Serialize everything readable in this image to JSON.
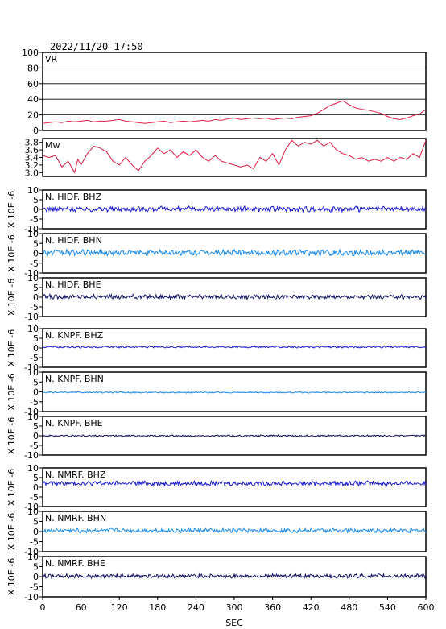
{
  "header": {
    "datetime": "2022/11/20  17:50"
  },
  "chart_data": {
    "type": "line",
    "x": {
      "label": "SEC",
      "range": [
        0,
        600
      ],
      "ticks": [
        0,
        60,
        120,
        180,
        240,
        300,
        360,
        420,
        480,
        540,
        600
      ]
    },
    "colors": {
      "vr": "#e0204a",
      "mw": "#d81a40",
      "bhz": "#1a1ad0",
      "bhn": "#1a8ae8",
      "bhe": "#101060"
    },
    "panels": [
      {
        "id": "vr",
        "label": "VR",
        "color": "#e0204a",
        "ylim": [
          0,
          100
        ],
        "yticks": [
          0,
          20,
          40,
          60,
          80,
          100
        ],
        "grid": true,
        "series": [
          [
            0,
            9
          ],
          [
            10,
            10
          ],
          [
            20,
            11
          ],
          [
            30,
            10
          ],
          [
            40,
            12
          ],
          [
            50,
            11
          ],
          [
            60,
            12
          ],
          [
            70,
            13
          ],
          [
            80,
            11
          ],
          [
            90,
            12
          ],
          [
            100,
            12
          ],
          [
            110,
            13
          ],
          [
            120,
            14
          ],
          [
            130,
            12
          ],
          [
            140,
            11
          ],
          [
            150,
            10
          ],
          [
            160,
            9
          ],
          [
            170,
            10
          ],
          [
            180,
            11
          ],
          [
            190,
            12
          ],
          [
            200,
            10
          ],
          [
            210,
            11
          ],
          [
            220,
            12
          ],
          [
            230,
            11
          ],
          [
            240,
            12
          ],
          [
            250,
            13
          ],
          [
            260,
            12
          ],
          [
            270,
            14
          ],
          [
            280,
            13
          ],
          [
            290,
            15
          ],
          [
            300,
            16
          ],
          [
            310,
            14
          ],
          [
            320,
            15
          ],
          [
            330,
            16
          ],
          [
            340,
            15
          ],
          [
            350,
            16
          ],
          [
            360,
            14
          ],
          [
            370,
            15
          ],
          [
            380,
            16
          ],
          [
            390,
            15
          ],
          [
            400,
            17
          ],
          [
            410,
            18
          ],
          [
            420,
            19
          ],
          [
            430,
            22
          ],
          [
            440,
            27
          ],
          [
            450,
            32
          ],
          [
            460,
            35
          ],
          [
            470,
            38
          ],
          [
            480,
            33
          ],
          [
            490,
            29
          ],
          [
            500,
            27
          ],
          [
            510,
            26
          ],
          [
            520,
            24
          ],
          [
            530,
            22
          ],
          [
            540,
            18
          ],
          [
            550,
            15
          ],
          [
            560,
            14
          ],
          [
            570,
            16
          ],
          [
            580,
            19
          ],
          [
            590,
            21
          ],
          [
            600,
            27
          ]
        ]
      },
      {
        "id": "mw",
        "label": "Mw",
        "color": "#d81a40",
        "ylim": [
          2.9,
          3.9
        ],
        "yticks": [
          3.0,
          3.2,
          3.4,
          3.6,
          3.8
        ],
        "grid": false,
        "series": [
          [
            0,
            3.45
          ],
          [
            10,
            3.4
          ],
          [
            20,
            3.45
          ],
          [
            30,
            3.15
          ],
          [
            40,
            3.3
          ],
          [
            50,
            3.0
          ],
          [
            55,
            3.35
          ],
          [
            60,
            3.2
          ],
          [
            70,
            3.5
          ],
          [
            80,
            3.7
          ],
          [
            90,
            3.65
          ],
          [
            100,
            3.55
          ],
          [
            110,
            3.3
          ],
          [
            120,
            3.2
          ],
          [
            130,
            3.4
          ],
          [
            140,
            3.2
          ],
          [
            150,
            3.05
          ],
          [
            160,
            3.3
          ],
          [
            170,
            3.45
          ],
          [
            180,
            3.65
          ],
          [
            190,
            3.5
          ],
          [
            200,
            3.6
          ],
          [
            210,
            3.4
          ],
          [
            220,
            3.55
          ],
          [
            230,
            3.45
          ],
          [
            240,
            3.6
          ],
          [
            250,
            3.4
          ],
          [
            260,
            3.3
          ],
          [
            270,
            3.45
          ],
          [
            280,
            3.3
          ],
          [
            290,
            3.25
          ],
          [
            300,
            3.2
          ],
          [
            310,
            3.15
          ],
          [
            320,
            3.2
          ],
          [
            330,
            3.1
          ],
          [
            340,
            3.4
          ],
          [
            350,
            3.3
          ],
          [
            360,
            3.5
          ],
          [
            370,
            3.2
          ],
          [
            380,
            3.6
          ],
          [
            390,
            3.85
          ],
          [
            400,
            3.7
          ],
          [
            410,
            3.8
          ],
          [
            420,
            3.75
          ],
          [
            430,
            3.85
          ],
          [
            440,
            3.7
          ],
          [
            450,
            3.8
          ],
          [
            460,
            3.6
          ],
          [
            470,
            3.5
          ],
          [
            480,
            3.45
          ],
          [
            490,
            3.35
          ],
          [
            500,
            3.4
          ],
          [
            510,
            3.3
          ],
          [
            520,
            3.35
          ],
          [
            530,
            3.3
          ],
          [
            540,
            3.4
          ],
          [
            550,
            3.3
          ],
          [
            560,
            3.4
          ],
          [
            570,
            3.35
          ],
          [
            580,
            3.5
          ],
          [
            590,
            3.4
          ],
          [
            600,
            3.85
          ]
        ]
      },
      {
        "id": "hidf-bhz",
        "label": "N. HIDF. BHZ",
        "color": "#1a1ad0",
        "ylim": [
          -10,
          10
        ],
        "yticks": [
          -10,
          -5,
          0,
          5,
          10
        ],
        "grid": false,
        "baseline": 0.2,
        "amplitude": 1.2
      },
      {
        "id": "hidf-bhn",
        "label": "N. HIDF. BHN",
        "color": "#1a8ae8",
        "ylim": [
          -10,
          10
        ],
        "yticks": [
          -10,
          -5,
          0,
          5,
          10
        ],
        "grid": false,
        "baseline": 0.3,
        "amplitude": 1.3
      },
      {
        "id": "hidf-bhe",
        "label": "N. HIDF. BHE",
        "color": "#101060",
        "ylim": [
          -10,
          10
        ],
        "yticks": [
          -10,
          -5,
          0,
          5,
          10
        ],
        "grid": false,
        "baseline": 0.2,
        "amplitude": 1.0
      },
      {
        "id": "knpf-bhz",
        "label": "N. KNPF. BHZ",
        "color": "#1a1ad0",
        "ylim": [
          -10,
          10
        ],
        "yticks": [
          -10,
          -5,
          0,
          5,
          10
        ],
        "grid": false,
        "baseline": 0.5,
        "amplitude": 0.4
      },
      {
        "id": "knpf-bhn",
        "label": "N. KNPF. BHN",
        "color": "#1a8ae8",
        "ylim": [
          -10,
          10
        ],
        "yticks": [
          -10,
          -5,
          0,
          5,
          10
        ],
        "grid": false,
        "baseline": -0.3,
        "amplitude": 0.3
      },
      {
        "id": "knpf-bhe",
        "label": "N. KNPF. BHE",
        "color": "#101060",
        "ylim": [
          -10,
          10
        ],
        "yticks": [
          -10,
          -5,
          0,
          5,
          10
        ],
        "grid": false,
        "baseline": 0.0,
        "amplitude": 0.35
      },
      {
        "id": "nmrf-bhz",
        "label": "N. NMRF. BHZ",
        "color": "#1a1ad0",
        "ylim": [
          -10,
          10
        ],
        "yticks": [
          -10,
          -5,
          0,
          5,
          10
        ],
        "grid": false,
        "baseline": 2.0,
        "amplitude": 1.0
      },
      {
        "id": "nmrf-bhn",
        "label": "N. NMRF. BHN",
        "color": "#1a8ae8",
        "ylim": [
          -10,
          10
        ],
        "yticks": [
          -10,
          -5,
          0,
          5,
          10
        ],
        "grid": false,
        "baseline": 0.5,
        "amplitude": 0.9
      },
      {
        "id": "nmrf-bhe",
        "label": "N. NMRF. BHE",
        "color": "#101060",
        "ylim": [
          -10,
          10
        ],
        "yticks": [
          -10,
          -5,
          0,
          5,
          10
        ],
        "grid": false,
        "baseline": 0.3,
        "amplitude": 0.9
      }
    ],
    "ylabel_text": "X 10E -6"
  }
}
